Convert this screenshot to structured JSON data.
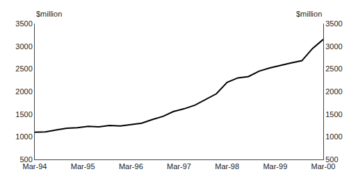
{
  "chart_data": {
    "type": "line",
    "y_label": "$million",
    "y2_label": "$million",
    "x": [
      0,
      0.8888888888888888,
      1.7777777777777777,
      2.6666666666666665,
      3.5555555555555554,
      4.444444444444445,
      5.333333333333333,
      6.222222222222222,
      7.111111111111111,
      8,
      8.88888888888889,
      9.777777777777779,
      10.666666666666666,
      11.555555555555555,
      12.444444444444445,
      13.333333333333334,
      14.222222222222221,
      15.11111111111111,
      16,
      16.88888888888889,
      17.77777777777778,
      18.666666666666668,
      19.555555555555557,
      20.444444444444443,
      21.333333333333332,
      22.22222222222222,
      23.11111111111111,
      24
    ],
    "values": [
      1100,
      1110,
      1150,
      1190,
      1200,
      1230,
      1220,
      1250,
      1240,
      1270,
      1300,
      1380,
      1450,
      1560,
      1620,
      1700,
      1820,
      1950,
      2200,
      2300,
      2330,
      2450,
      2520,
      2580,
      2630,
      2680,
      2950,
      3150
    ],
    "color": "#000000",
    "xlim": [
      0,
      24
    ],
    "xticks": [
      {
        "value": 0,
        "label": "Mar-94"
      },
      {
        "value": 4,
        "label": "Mar-95"
      },
      {
        "value": 8,
        "label": "Mar-96"
      },
      {
        "value": 12,
        "label": "Mar-97"
      },
      {
        "value": 16,
        "label": "Mar-98"
      },
      {
        "value": 20,
        "label": "Mar-99"
      },
      {
        "value": 24,
        "label": "Mar-00"
      }
    ],
    "ylim": [
      500,
      3500
    ],
    "yticks": [
      500,
      1000,
      1500,
      2000,
      2500,
      3000,
      3500
    ],
    "y2lim": [
      500,
      3500
    ],
    "y2ticks": [
      500,
      1000,
      1500,
      2000,
      2500,
      3000,
      3500
    ],
    "grid": false
  }
}
